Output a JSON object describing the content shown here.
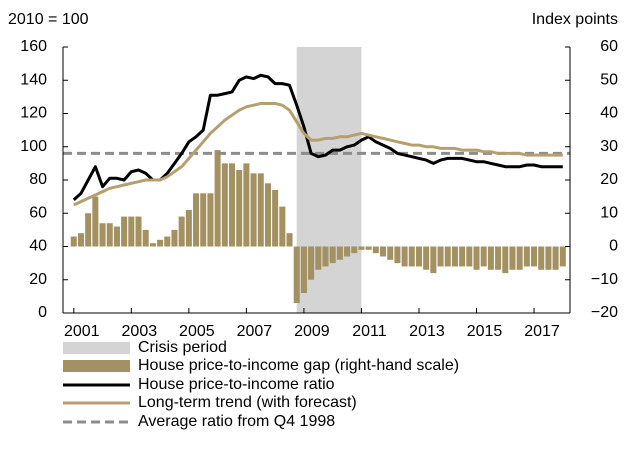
{
  "chart_data": {
    "type": "combo",
    "ylabel": "2010 = 100",
    "y2label": "Index points",
    "xlim": [
      2000.625,
      2018.25
    ],
    "xticks": [
      2001,
      2003,
      2005,
      2007,
      2009,
      2011,
      2013,
      2015,
      2017
    ],
    "ylim": [
      0,
      160
    ],
    "yticks": [
      0,
      20,
      40,
      60,
      80,
      100,
      120,
      140,
      160
    ],
    "y2lim": [
      -20,
      60
    ],
    "y2ticks": [
      {
        "value": -20,
        "label": "−20"
      },
      {
        "value": -10,
        "label": "−10"
      },
      0,
      10,
      20,
      30,
      40,
      50,
      60
    ],
    "crisis": {
      "name": "Crisis period",
      "start": 2008.75,
      "end": 2011,
      "color": "#d4d4d4"
    },
    "reference_line": {
      "name": "Average ratio from Q4 1998",
      "value": 96,
      "color": "#8c8c8c"
    },
    "x": [
      2001,
      2001.25,
      2001.5,
      2001.75,
      2002,
      2002.25,
      2002.5,
      2002.75,
      2003,
      2003.25,
      2003.5,
      2003.75,
      2004,
      2004.25,
      2004.5,
      2004.75,
      2005,
      2005.25,
      2005.5,
      2005.75,
      2006,
      2006.25,
      2006.5,
      2006.75,
      2007,
      2007.25,
      2007.5,
      2007.75,
      2008,
      2008.25,
      2008.5,
      2008.75,
      2009,
      2009.25,
      2009.5,
      2009.75,
      2010,
      2010.25,
      2010.5,
      2010.75,
      2011,
      2011.25,
      2011.5,
      2011.75,
      2012,
      2012.25,
      2012.5,
      2012.75,
      2013,
      2013.25,
      2013.5,
      2013.75,
      2014,
      2014.25,
      2014.5,
      2014.75,
      2015,
      2015.25,
      2015.5,
      2015.75,
      2016,
      2016.25,
      2016.5,
      2016.75,
      2017,
      2017.25,
      2017.5,
      2017.75,
      2018
    ],
    "series": [
      {
        "name": "House price-to-income gap (right-hand scale)",
        "type": "bar",
        "axis": "y2",
        "color": "#a39162",
        "values": [
          3,
          4,
          10,
          15,
          7,
          7,
          6,
          9,
          9,
          9,
          5,
          1,
          2,
          3,
          5,
          9,
          11,
          16,
          16,
          16,
          29,
          25,
          25,
          23,
          25,
          22,
          22,
          19,
          17,
          12,
          4,
          -17,
          -14,
          -10,
          -7,
          -6,
          -5,
          -4,
          -3,
          -2,
          -1,
          -1,
          -2,
          -3,
          -4,
          -5,
          -6,
          -6,
          -6,
          -7,
          -8,
          -6,
          -6,
          -6,
          -6,
          -6,
          -7,
          -6,
          -7,
          -7,
          -8,
          -7,
          -7,
          -6,
          -6,
          -7,
          -7,
          -7,
          -6
        ]
      },
      {
        "name": "House price-to-income ratio",
        "type": "line",
        "color": "#000000",
        "values": [
          68,
          72,
          80,
          88,
          76,
          81,
          81,
          80,
          85,
          86,
          84,
          80,
          80,
          84,
          90,
          96,
          103,
          106,
          110,
          131,
          131,
          132,
          133,
          140,
          142,
          141,
          143,
          142,
          138,
          138,
          137,
          125,
          112,
          96,
          94,
          95,
          98,
          98,
          100,
          101,
          104,
          106,
          103,
          101,
          99,
          96,
          95,
          94,
          93,
          92,
          90,
          92,
          93,
          93,
          93,
          92,
          91,
          91,
          90,
          89,
          88,
          88,
          88,
          89,
          89,
          88,
          88,
          88,
          88
        ]
      },
      {
        "name": "Long-term trend (with forecast)",
        "type": "line",
        "color": "#b3a06e",
        "values": [
          65,
          67,
          69,
          71,
          73,
          75,
          76,
          77,
          78,
          79,
          80,
          80,
          80,
          82,
          85,
          88,
          93,
          98,
          103,
          108,
          112,
          116,
          119,
          122,
          124,
          125,
          126,
          126,
          126,
          125,
          122,
          115,
          108,
          104,
          104,
          105,
          105,
          106,
          106,
          107,
          108,
          107,
          106,
          105,
          104,
          103,
          102,
          101,
          101,
          100,
          100,
          99,
          99,
          99,
          98,
          98,
          98,
          97,
          97,
          96,
          96,
          96,
          96,
          95,
          95,
          95,
          95,
          95,
          95
        ]
      }
    ]
  }
}
